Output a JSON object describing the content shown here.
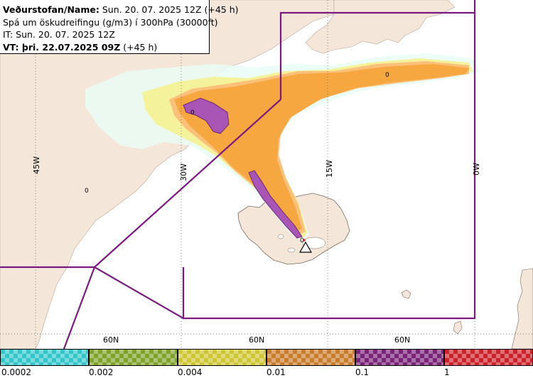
{
  "header": {
    "line1_bold": "Veðurstofan/Name:",
    "line1_rest": " Sun. 20. 07. 2025 12Z (+45 h)",
    "line2": "Spá um öskudreifingu (g/m3) í 300hPa (30000ft)",
    "line3": "IT: Sun. 20. 07. 2025 12Z",
    "line4_bold": "VT: þri. 22.07.2025 09Z",
    "line4_rest": " (+45 h)"
  },
  "map": {
    "meridian_labels": [
      "45W",
      "30W",
      "15W",
      "0W"
    ],
    "parallel_labels": [
      "60N",
      "60N",
      "60N"
    ],
    "contour_labels": [
      "0",
      "0",
      "0",
      "0"
    ],
    "colors": {
      "sea": "#ffffff",
      "land": "#f5e6da",
      "flight_region_border": "#7a1a80",
      "level_0_0002": "#bff5f0",
      "level_0_002": "#f2f28a",
      "level_0_01": "#fbbf6b",
      "level_0_1": "#f5a63a",
      "level_1": "#a855b5"
    },
    "volcano_icon": "triangle-warning-icon"
  },
  "legend": {
    "ticks": [
      "0.0002",
      "0.002",
      "0.004",
      "0.01",
      "0.1",
      "1"
    ],
    "colors": [
      "#33c6c9",
      "#7fa229",
      "#cfc634",
      "#c87c2c",
      "#7a2478",
      "#cc2229"
    ]
  }
}
